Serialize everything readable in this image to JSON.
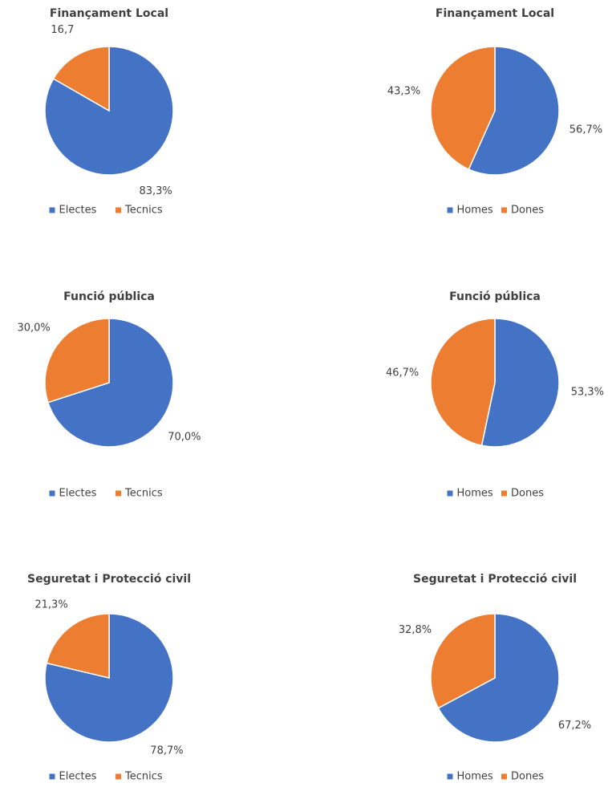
{
  "chart_data": [
    {
      "type": "pie",
      "title": "Finançament Local",
      "categories": [
        "Electes",
        "Tecnics"
      ],
      "values": [
        83.3,
        16.7
      ],
      "value_labels": [
        "83,3%",
        "16,7"
      ],
      "colors": [
        "#4472c4",
        "#ed7d31"
      ]
    },
    {
      "type": "pie",
      "title": "Finançament Local",
      "categories": [
        "Homes",
        "Dones"
      ],
      "values": [
        56.7,
        43.3
      ],
      "value_labels": [
        "56,7%",
        "43,3%"
      ],
      "colors": [
        "#4472c4",
        "#ed7d31"
      ]
    },
    {
      "type": "pie",
      "title": "Funció pública",
      "categories": [
        "Electes",
        "Tecnics"
      ],
      "values": [
        70.0,
        30.0
      ],
      "value_labels": [
        "70,0%",
        "30,0%"
      ],
      "colors": [
        "#4472c4",
        "#ed7d31"
      ]
    },
    {
      "type": "pie",
      "title": "Funció pública",
      "categories": [
        "Homes",
        "Dones"
      ],
      "values": [
        53.3,
        46.7
      ],
      "value_labels": [
        "53,3%",
        "46,7%"
      ],
      "colors": [
        "#4472c4",
        "#ed7d31"
      ]
    },
    {
      "type": "pie",
      "title": "Seguretat i Protecció civil",
      "categories": [
        "Electes",
        "Tecnics"
      ],
      "values": [
        78.7,
        21.3
      ],
      "value_labels": [
        "78,7%",
        "21,3%"
      ],
      "colors": [
        "#4472c4",
        "#ed7d31"
      ]
    },
    {
      "type": "pie",
      "title": "Seguretat i Protecció civil",
      "categories": [
        "Homes",
        "Dones"
      ],
      "values": [
        67.2,
        32.8
      ],
      "value_labels": [
        "67,2%",
        "32,8%"
      ],
      "colors": [
        "#4472c4",
        "#ed7d31"
      ]
    }
  ]
}
